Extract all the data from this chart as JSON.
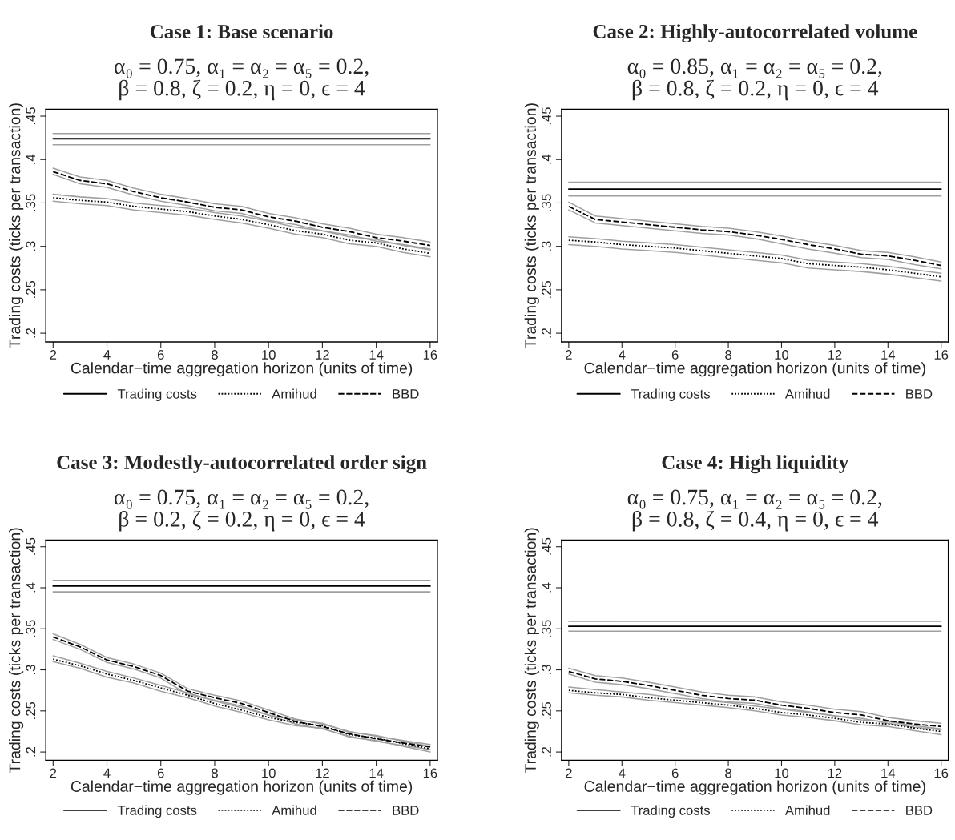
{
  "chart_data": [
    {
      "type": "line",
      "title": "Case 1: Base scenario",
      "subtitle": "α₀ = 0.75, α₁ = α₂ = α₅ = 0.2,\nβ = 0.8, ζ = 0.2, η = 0, ϵ = 4",
      "xlabel": "Calendar−time aggregation horizon (units of time)",
      "ylabel": "Trading costs (ticks per transaction)",
      "x": [
        2,
        3,
        4,
        5,
        6,
        7,
        8,
        9,
        10,
        11,
        12,
        13,
        14,
        15,
        16
      ],
      "xlim": [
        1.73,
        16.27
      ],
      "xticks": [
        2,
        4,
        6,
        8,
        10,
        12,
        14,
        16
      ],
      "ylim": [
        0.19,
        0.458
      ],
      "yticks": [
        {
          "value": 0.2,
          "label": ".2"
        },
        {
          "value": 0.25,
          "label": ".25"
        },
        {
          "value": 0.3,
          "label": ".3"
        },
        {
          "value": 0.35,
          "label": ".35"
        },
        {
          "value": 0.4,
          "label": ".4"
        },
        {
          "value": 0.45,
          "label": ".45"
        }
      ],
      "grid": false,
      "legend": "bottom",
      "marker": "none",
      "series": [
        {
          "color": "#a0a0a0",
          "line_style": "solid",
          "values": [
            0.417,
            0.417,
            0.417,
            0.417,
            0.417,
            0.417,
            0.417,
            0.417,
            0.417,
            0.417,
            0.417,
            0.417,
            0.417,
            0.417,
            0.417
          ]
        },
        {
          "color": "#a0a0a0",
          "line_style": "solid",
          "values": [
            0.43,
            0.43,
            0.43,
            0.43,
            0.43,
            0.43,
            0.43,
            0.43,
            0.43,
            0.43,
            0.43,
            0.43,
            0.43,
            0.43,
            0.43
          ]
        },
        {
          "color": "#a0a0a0",
          "line_style": "solid",
          "values": [
            0.352,
            0.349,
            0.347,
            0.342,
            0.339,
            0.336,
            0.331,
            0.327,
            0.321,
            0.314,
            0.31,
            0.303,
            0.3,
            0.293,
            0.288
          ]
        },
        {
          "color": "#a0a0a0",
          "line_style": "solid",
          "values": [
            0.36,
            0.357,
            0.355,
            0.35,
            0.347,
            0.344,
            0.339,
            0.335,
            0.329,
            0.322,
            0.318,
            0.311,
            0.308,
            0.301,
            0.296
          ]
        },
        {
          "color": "#a0a0a0",
          "line_style": "solid",
          "values": [
            0.383,
            0.372,
            0.368,
            0.359,
            0.352,
            0.347,
            0.341,
            0.338,
            0.33,
            0.325,
            0.318,
            0.313,
            0.306,
            0.302,
            0.297
          ]
        },
        {
          "color": "#a0a0a0",
          "line_style": "solid",
          "values": [
            0.39,
            0.38,
            0.376,
            0.367,
            0.36,
            0.355,
            0.349,
            0.346,
            0.338,
            0.333,
            0.326,
            0.321,
            0.314,
            0.31,
            0.305
          ]
        },
        {
          "name": "Trading costs",
          "color": "#000000",
          "line_style": "solid",
          "values": [
            0.424,
            0.424,
            0.424,
            0.424,
            0.424,
            0.424,
            0.424,
            0.424,
            0.424,
            0.424,
            0.424,
            0.424,
            0.424,
            0.424,
            0.424
          ]
        },
        {
          "name": "Amihud",
          "color": "#000000",
          "line_style": "dotted",
          "values": [
            0.356,
            0.353,
            0.351,
            0.346,
            0.343,
            0.34,
            0.335,
            0.331,
            0.325,
            0.318,
            0.314,
            0.307,
            0.304,
            0.297,
            0.292
          ]
        },
        {
          "name": "BBD",
          "color": "#000000",
          "line_style": "dashed",
          "values": [
            0.386,
            0.376,
            0.372,
            0.363,
            0.356,
            0.351,
            0.345,
            0.342,
            0.334,
            0.329,
            0.322,
            0.317,
            0.31,
            0.306,
            0.301
          ]
        }
      ]
    },
    {
      "type": "line",
      "title": "Case 2: Highly-autocorrelated volume",
      "subtitle": "α₀ = 0.85, α₁ = α₂ = α₅ = 0.2,\nβ = 0.8, ζ = 0.2, η = 0, ϵ = 4",
      "xlabel": "Calendar−time aggregation horizon (units of time)",
      "ylabel": "Trading costs (ticks per transaction)",
      "x": [
        2,
        3,
        4,
        5,
        6,
        7,
        8,
        9,
        10,
        11,
        12,
        13,
        14,
        15,
        16
      ],
      "xlim": [
        1.73,
        16.27
      ],
      "xticks": [
        2,
        4,
        6,
        8,
        10,
        12,
        14,
        16
      ],
      "ylim": [
        0.19,
        0.458
      ],
      "yticks": [
        {
          "value": 0.2,
          "label": ".2"
        },
        {
          "value": 0.25,
          "label": ".25"
        },
        {
          "value": 0.3,
          "label": ".3"
        },
        {
          "value": 0.35,
          "label": ".35"
        },
        {
          "value": 0.4,
          "label": ".4"
        },
        {
          "value": 0.45,
          "label": ".45"
        }
      ],
      "grid": false,
      "legend": "bottom",
      "marker": "none",
      "series": [
        {
          "color": "#a0a0a0",
          "line_style": "solid",
          "values": [
            0.358,
            0.358,
            0.358,
            0.358,
            0.358,
            0.358,
            0.358,
            0.358,
            0.358,
            0.358,
            0.358,
            0.358,
            0.358,
            0.358,
            0.358
          ]
        },
        {
          "color": "#a0a0a0",
          "line_style": "solid",
          "values": [
            0.374,
            0.374,
            0.374,
            0.374,
            0.374,
            0.374,
            0.374,
            0.374,
            0.374,
            0.374,
            0.374,
            0.374,
            0.374,
            0.374,
            0.374
          ]
        },
        {
          "color": "#a0a0a0",
          "line_style": "solid",
          "values": [
            0.302,
            0.3,
            0.297,
            0.295,
            0.293,
            0.29,
            0.287,
            0.284,
            0.281,
            0.275,
            0.273,
            0.271,
            0.268,
            0.264,
            0.26
          ]
        },
        {
          "color": "#a0a0a0",
          "line_style": "solid",
          "values": [
            0.311,
            0.309,
            0.306,
            0.304,
            0.302,
            0.299,
            0.296,
            0.293,
            0.29,
            0.284,
            0.282,
            0.28,
            0.277,
            0.273,
            0.269
          ]
        },
        {
          "color": "#a0a0a0",
          "line_style": "solid",
          "values": [
            0.342,
            0.327,
            0.324,
            0.321,
            0.318,
            0.315,
            0.313,
            0.309,
            0.303,
            0.297,
            0.292,
            0.287,
            0.285,
            0.279,
            0.274
          ]
        },
        {
          "color": "#a0a0a0",
          "line_style": "solid",
          "values": [
            0.351,
            0.335,
            0.332,
            0.329,
            0.326,
            0.323,
            0.321,
            0.317,
            0.312,
            0.306,
            0.301,
            0.295,
            0.293,
            0.288,
            0.282
          ]
        },
        {
          "name": "Trading costs",
          "color": "#000000",
          "line_style": "solid",
          "values": [
            0.366,
            0.366,
            0.366,
            0.366,
            0.366,
            0.366,
            0.366,
            0.366,
            0.366,
            0.366,
            0.366,
            0.366,
            0.366,
            0.366,
            0.366
          ]
        },
        {
          "name": "Amihud",
          "color": "#000000",
          "line_style": "dotted",
          "values": [
            0.307,
            0.305,
            0.302,
            0.3,
            0.298,
            0.295,
            0.292,
            0.289,
            0.286,
            0.28,
            0.278,
            0.276,
            0.273,
            0.269,
            0.265
          ]
        },
        {
          "name": "BBD",
          "color": "#000000",
          "line_style": "dashed",
          "values": [
            0.346,
            0.331,
            0.328,
            0.325,
            0.322,
            0.319,
            0.317,
            0.313,
            0.308,
            0.302,
            0.297,
            0.291,
            0.289,
            0.284,
            0.278
          ]
        }
      ]
    },
    {
      "type": "line",
      "title": "Case 3: Modestly-autocorrelated order sign",
      "subtitle": "α₀ = 0.75, α₁ = α₂ = α₅ = 0.2,\nβ = 0.2, ζ = 0.2, η = 0, ϵ = 4",
      "xlabel": "Calendar−time aggregation horizon (units of time)",
      "ylabel": "Trading costs (ticks per transaction)",
      "x": [
        2,
        3,
        4,
        5,
        6,
        7,
        8,
        9,
        10,
        11,
        12,
        13,
        14,
        15,
        16
      ],
      "xlim": [
        1.73,
        16.27
      ],
      "xticks": [
        2,
        4,
        6,
        8,
        10,
        12,
        14,
        16
      ],
      "ylim": [
        0.19,
        0.458
      ],
      "yticks": [
        {
          "value": 0.2,
          "label": ".2"
        },
        {
          "value": 0.25,
          "label": ".25"
        },
        {
          "value": 0.3,
          "label": ".3"
        },
        {
          "value": 0.35,
          "label": ".35"
        },
        {
          "value": 0.4,
          "label": ".4"
        },
        {
          "value": 0.45,
          "label": ".45"
        }
      ],
      "grid": false,
      "legend": "bottom",
      "marker": "none",
      "series": [
        {
          "color": "#a0a0a0",
          "line_style": "solid",
          "values": [
            0.395,
            0.395,
            0.395,
            0.395,
            0.395,
            0.395,
            0.395,
            0.395,
            0.395,
            0.395,
            0.395,
            0.395,
            0.395,
            0.395,
            0.395
          ]
        },
        {
          "color": "#a0a0a0",
          "line_style": "solid",
          "values": [
            0.409,
            0.409,
            0.409,
            0.409,
            0.409,
            0.409,
            0.409,
            0.409,
            0.409,
            0.409,
            0.409,
            0.409,
            0.409,
            0.409,
            0.409
          ]
        },
        {
          "color": "#a0a0a0",
          "line_style": "solid",
          "values": [
            0.31,
            0.302,
            0.291,
            0.284,
            0.274,
            0.266,
            0.256,
            0.248,
            0.239,
            0.232,
            0.229,
            0.218,
            0.214,
            0.207,
            0.2
          ]
        },
        {
          "color": "#a0a0a0",
          "line_style": "solid",
          "values": [
            0.317,
            0.308,
            0.298,
            0.29,
            0.281,
            0.272,
            0.262,
            0.254,
            0.245,
            0.239,
            0.235,
            0.224,
            0.22,
            0.213,
            0.207
          ]
        },
        {
          "color": "#a0a0a0",
          "line_style": "solid",
          "values": [
            0.337,
            0.325,
            0.309,
            0.301,
            0.29,
            0.27,
            0.263,
            0.256,
            0.245,
            0.234,
            0.228,
            0.219,
            0.213,
            0.208,
            0.203
          ]
        },
        {
          "color": "#a0a0a0",
          "line_style": "solid",
          "values": [
            0.344,
            0.331,
            0.315,
            0.307,
            0.296,
            0.277,
            0.269,
            0.262,
            0.251,
            0.24,
            0.234,
            0.225,
            0.219,
            0.214,
            0.209
          ]
        },
        {
          "name": "Trading costs",
          "color": "#000000",
          "line_style": "solid",
          "values": [
            0.402,
            0.402,
            0.402,
            0.402,
            0.402,
            0.402,
            0.402,
            0.402,
            0.402,
            0.402,
            0.402,
            0.402,
            0.402,
            0.402,
            0.402
          ]
        },
        {
          "name": "Amihud",
          "color": "#000000",
          "line_style": "dotted",
          "values": [
            0.313,
            0.305,
            0.295,
            0.287,
            0.278,
            0.269,
            0.259,
            0.251,
            0.242,
            0.236,
            0.232,
            0.221,
            0.217,
            0.21,
            0.204
          ]
        },
        {
          "name": "BBD",
          "color": "#000000",
          "line_style": "dashed",
          "values": [
            0.34,
            0.328,
            0.312,
            0.304,
            0.293,
            0.274,
            0.266,
            0.259,
            0.248,
            0.237,
            0.231,
            0.222,
            0.216,
            0.211,
            0.206
          ]
        }
      ]
    },
    {
      "type": "line",
      "title": "Case 4: High liquidity",
      "subtitle": "α₀ = 0.75, α₁ = α₂ = α₅ = 0.2,\nβ = 0.8, ζ = 0.4, η = 0, ϵ = 4",
      "xlabel": "Calendar−time aggregation horizon (units of time)",
      "ylabel": "Trading costs (ticks per transaction)",
      "x": [
        2,
        3,
        4,
        5,
        6,
        7,
        8,
        9,
        10,
        11,
        12,
        13,
        14,
        15,
        16
      ],
      "xlim": [
        1.73,
        16.27
      ],
      "xticks": [
        2,
        4,
        6,
        8,
        10,
        12,
        14,
        16
      ],
      "ylim": [
        0.19,
        0.458
      ],
      "yticks": [
        {
          "value": 0.2,
          "label": ".2"
        },
        {
          "value": 0.25,
          "label": ".25"
        },
        {
          "value": 0.3,
          "label": ".3"
        },
        {
          "value": 0.35,
          "label": ".35"
        },
        {
          "value": 0.4,
          "label": ".4"
        },
        {
          "value": 0.45,
          "label": ".45"
        }
      ],
      "grid": false,
      "legend": "bottom",
      "marker": "none",
      "series": [
        {
          "color": "#a0a0a0",
          "line_style": "solid",
          "values": [
            0.347,
            0.347,
            0.347,
            0.347,
            0.347,
            0.347,
            0.347,
            0.347,
            0.347,
            0.347,
            0.347,
            0.347,
            0.347,
            0.347,
            0.347
          ]
        },
        {
          "color": "#a0a0a0",
          "line_style": "solid",
          "values": [
            0.359,
            0.359,
            0.359,
            0.359,
            0.359,
            0.359,
            0.359,
            0.359,
            0.359,
            0.359,
            0.359,
            0.359,
            0.359,
            0.359,
            0.359
          ]
        },
        {
          "color": "#a0a0a0",
          "line_style": "solid",
          "values": [
            0.272,
            0.269,
            0.267,
            0.263,
            0.26,
            0.257,
            0.254,
            0.25,
            0.245,
            0.242,
            0.238,
            0.233,
            0.231,
            0.226,
            0.221
          ]
        },
        {
          "color": "#a0a0a0",
          "line_style": "solid",
          "values": [
            0.279,
            0.276,
            0.273,
            0.27,
            0.266,
            0.263,
            0.26,
            0.256,
            0.252,
            0.248,
            0.244,
            0.239,
            0.237,
            0.232,
            0.228
          ]
        },
        {
          "color": "#a0a0a0",
          "line_style": "solid",
          "values": [
            0.295,
            0.285,
            0.282,
            0.277,
            0.271,
            0.265,
            0.261,
            0.259,
            0.253,
            0.249,
            0.244,
            0.241,
            0.235,
            0.23,
            0.227
          ]
        },
        {
          "color": "#a0a0a0",
          "line_style": "solid",
          "values": [
            0.302,
            0.293,
            0.29,
            0.285,
            0.279,
            0.273,
            0.269,
            0.267,
            0.261,
            0.257,
            0.252,
            0.249,
            0.242,
            0.238,
            0.235
          ]
        },
        {
          "name": "Trading costs",
          "color": "#000000",
          "line_style": "solid",
          "values": [
            0.353,
            0.353,
            0.353,
            0.353,
            0.353,
            0.353,
            0.353,
            0.353,
            0.353,
            0.353,
            0.353,
            0.353,
            0.353,
            0.353,
            0.353
          ]
        },
        {
          "name": "Amihud",
          "color": "#000000",
          "line_style": "dotted",
          "values": [
            0.275,
            0.272,
            0.27,
            0.266,
            0.263,
            0.26,
            0.257,
            0.253,
            0.248,
            0.245,
            0.241,
            0.236,
            0.234,
            0.229,
            0.225
          ]
        },
        {
          "name": "BBD",
          "color": "#000000",
          "line_style": "dashed",
          "values": [
            0.298,
            0.289,
            0.286,
            0.281,
            0.275,
            0.269,
            0.265,
            0.263,
            0.257,
            0.253,
            0.248,
            0.245,
            0.238,
            0.234,
            0.231
          ]
        }
      ]
    }
  ]
}
